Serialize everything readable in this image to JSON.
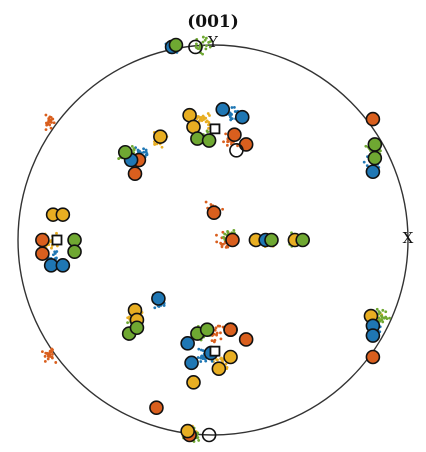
{
  "chart_data": {
    "type": "scatter",
    "projection": "pole-figure-stereographic",
    "title": "(001)",
    "xlabel": "X",
    "ylabel": "Y",
    "xlim": [
      -1,
      1
    ],
    "ylim": [
      -1,
      1
    ],
    "grid": false,
    "legend": "none",
    "colors": {
      "orange": "#D95F1E",
      "yellow": "#E8AE22",
      "blue": "#1F77B4",
      "green": "#6FA832",
      "outline": "#111111",
      "circle": "#333333"
    },
    "series": [
      {
        "color": "orange",
        "markers": [
          [
            -0.875,
            0.0
          ],
          [
            -0.875,
            -0.07
          ],
          [
            0.1,
            0.0
          ],
          [
            0.005,
            0.14
          ],
          [
            0.11,
            0.54
          ],
          [
            0.17,
            0.49
          ],
          [
            -0.4,
            0.34
          ],
          [
            0.82,
            0.62
          ],
          [
            -0.38,
            0.41
          ],
          [
            0.82,
            -0.6
          ],
          [
            0.09,
            -0.46
          ],
          [
            0.17,
            -0.51
          ],
          [
            -0.29,
            -0.86
          ],
          [
            -0.12,
            -1.0
          ]
        ],
        "scatter_centers": [
          [
            -0.84,
            0.6
          ],
          [
            -0.84,
            -0.59
          ],
          [
            0.06,
            0.0
          ],
          [
            0.0,
            0.16
          ],
          [
            0.09,
            0.5
          ],
          [
            0.01,
            -0.47
          ]
        ]
      },
      {
        "color": "yellow",
        "markers": [
          [
            -0.82,
            0.13
          ],
          [
            -0.77,
            0.13
          ],
          [
            0.22,
            0.0
          ],
          [
            0.42,
            0.0
          ],
          [
            -0.12,
            0.64
          ],
          [
            -0.1,
            0.58
          ],
          [
            0.81,
            -0.39
          ],
          [
            -0.27,
            0.53
          ],
          [
            -0.4,
            -0.36
          ],
          [
            -0.39,
            -0.41
          ],
          [
            0.03,
            -0.66
          ],
          [
            0.09,
            -0.6
          ],
          [
            -0.1,
            -0.73
          ],
          [
            -0.13,
            -0.98
          ]
        ],
        "scatter_centers": [
          [
            -0.84,
            0.0
          ],
          [
            0.3,
            0.0
          ],
          [
            -0.05,
            0.62
          ],
          [
            -0.28,
            0.52
          ],
          [
            0.82,
            -0.41
          ],
          [
            -0.39,
            -0.39
          ],
          [
            0.04,
            -0.63
          ],
          [
            -0.12,
            -0.99
          ]
        ]
      },
      {
        "color": "blue",
        "markers": [
          [
            -0.83,
            -0.13
          ],
          [
            -0.77,
            -0.13
          ],
          [
            0.27,
            0.0
          ],
          [
            0.05,
            0.67
          ],
          [
            0.15,
            0.63
          ],
          [
            0.82,
            0.35
          ],
          [
            -0.42,
            0.41
          ],
          [
            -0.01,
            -0.58
          ],
          [
            -0.11,
            -0.63
          ],
          [
            0.82,
            -0.44
          ],
          [
            0.82,
            -0.49
          ],
          [
            -0.28,
            -0.3
          ],
          [
            -0.21,
            0.99
          ],
          [
            -0.13,
            -0.53
          ]
        ],
        "scatter_centers": [
          [
            -0.82,
            -0.1
          ],
          [
            0.1,
            0.65
          ],
          [
            0.82,
            0.38
          ],
          [
            -0.37,
            0.44
          ],
          [
            0.82,
            -0.47
          ],
          [
            -0.28,
            -0.32
          ],
          [
            -0.05,
            -0.6
          ],
          [
            -0.21,
            0.99
          ]
        ]
      },
      {
        "color": "green",
        "markers": [
          [
            -0.71,
            0.0
          ],
          [
            -0.71,
            -0.06
          ],
          [
            0.46,
            0.0
          ],
          [
            0.3,
            0.0
          ],
          [
            -0.08,
            0.52
          ],
          [
            -0.02,
            0.51
          ],
          [
            0.83,
            0.49
          ],
          [
            0.83,
            0.42
          ],
          [
            -0.45,
            0.45
          ],
          [
            -0.08,
            -0.48
          ],
          [
            -0.03,
            -0.46
          ],
          [
            -0.43,
            -0.48
          ],
          [
            -0.19,
            1.0
          ],
          [
            -0.39,
            -0.45
          ]
        ],
        "scatter_centers": [
          [
            0.42,
            0.0
          ],
          [
            0.09,
            0.02
          ],
          [
            -0.03,
            0.52
          ],
          [
            0.83,
            0.45
          ],
          [
            -0.44,
            0.44
          ],
          [
            -0.4,
            -0.42
          ],
          [
            -0.06,
            -0.47
          ],
          [
            -0.05,
            1.0
          ],
          [
            -0.11,
            -1.0
          ],
          [
            0.86,
            -0.39
          ]
        ]
      }
    ],
    "reference_squares": [
      [
        -0.8,
        0.0
      ],
      [
        0.01,
        0.57
      ],
      [
        0.01,
        -0.57
      ]
    ]
  }
}
